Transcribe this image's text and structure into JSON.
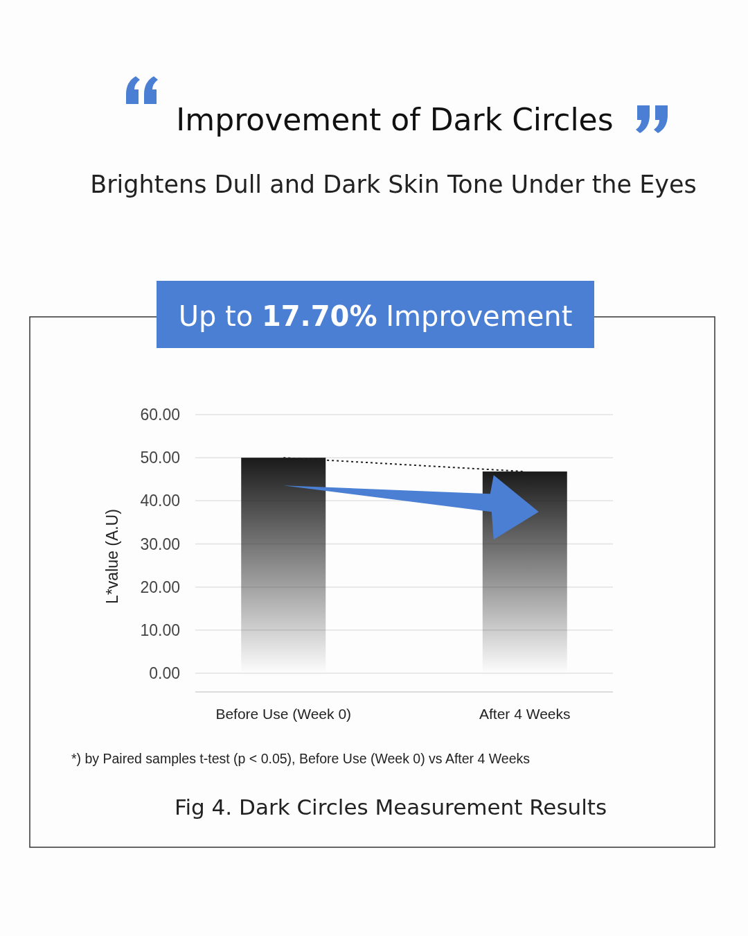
{
  "chart_data": {
    "type": "bar",
    "title": "Improvement of Dark Circles",
    "subtitle": "Brightens Dull and Dark Skin Tone Under the Eyes",
    "ylabel": "L*value (A.U)",
    "categories": [
      "Before Use (Week 0)",
      "After 4 Weeks"
    ],
    "series": [
      {
        "color": "#1a1a1a",
        "values": [
          50.0,
          46.8
        ]
      },
      {
        "type": "line",
        "color": "#222222",
        "line_style": "dotted",
        "marker": "none",
        "values": [
          50.0,
          46.8
        ]
      }
    ],
    "ylim": [
      0,
      60
    ],
    "yticks": [
      {
        "value": 0,
        "label": "0.00"
      },
      {
        "value": 10,
        "label": "10.00"
      },
      {
        "value": 20,
        "label": "20.00"
      },
      {
        "value": 30,
        "label": "30.00"
      },
      {
        "value": 40,
        "label": "40.00"
      },
      {
        "value": 50,
        "label": "50.00"
      },
      {
        "value": 60,
        "label": "60.00"
      }
    ],
    "grid": "y",
    "annotations": [
      "Up to 17.70% Improvement",
      "*) by Paired samples t-test (p < 0.05), Before Use (Week 0) vs After 4 Weeks",
      "Fig 4. Dark Circles Measurement Results"
    ]
  }
}
